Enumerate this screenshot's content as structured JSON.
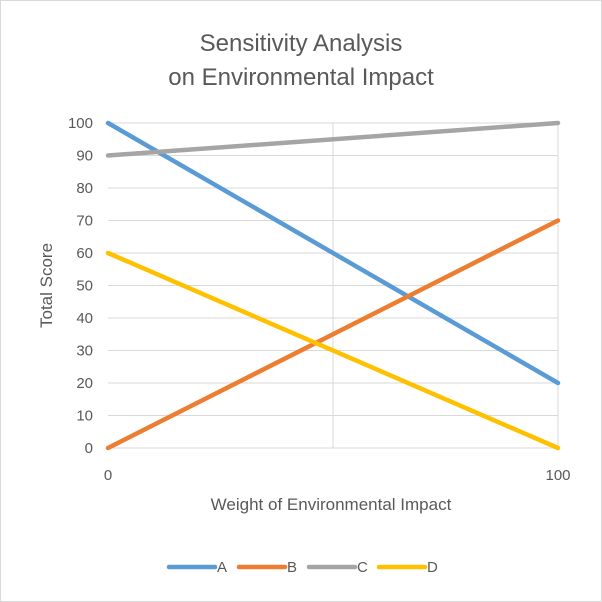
{
  "chart_data": {
    "type": "line",
    "title_line1": "Sensitivity Analysis",
    "title_line2": "on Environmental Impact",
    "xlabel": "Weight of Environmental Impact",
    "ylabel": "Total Score",
    "x": [
      0,
      100
    ],
    "x_ticks": [
      0,
      100
    ],
    "xlim": [
      0,
      100
    ],
    "ylim": [
      0,
      100
    ],
    "y_ticks": [
      0,
      10,
      20,
      30,
      40,
      50,
      60,
      70,
      80,
      90,
      100
    ],
    "grid": true,
    "legend_position": "bottom",
    "series": [
      {
        "name": "A",
        "values": [
          100,
          20
        ],
        "color": "#5b9bd5"
      },
      {
        "name": "B",
        "values": [
          0,
          70
        ],
        "color": "#ed7d31"
      },
      {
        "name": "C",
        "values": [
          90,
          100
        ],
        "color": "#a5a5a5"
      },
      {
        "name": "D",
        "values": [
          60,
          0
        ],
        "color": "#ffc000"
      }
    ],
    "gridline_color": "#d9d9d9"
  }
}
